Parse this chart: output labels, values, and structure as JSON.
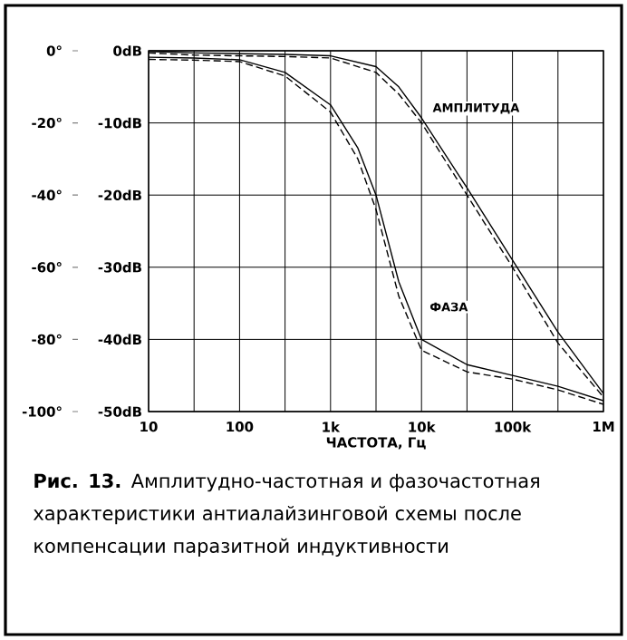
{
  "chart_data": {
    "type": "line",
    "xlabel": "ЧАСТОТА, Гц",
    "log": "x",
    "grid": true,
    "marker": "none",
    "xlim": [
      10,
      1000000
    ],
    "xticks": [
      10,
      {
        "value": 31.62,
        "label": null
      },
      100,
      {
        "value": 316.2,
        "label": null
      },
      {
        "value": 1000,
        "label": "1k"
      },
      {
        "value": 3162,
        "label": null
      },
      {
        "value": 10000,
        "label": "10k"
      },
      {
        "value": 31620,
        "label": null
      },
      {
        "value": 100000,
        "label": "100k"
      },
      {
        "value": 316200,
        "label": null
      },
      {
        "value": 1000000,
        "label": "1M"
      }
    ],
    "ylim": [
      -50,
      0
    ],
    "yticks": [
      {
        "value": 0,
        "label": "0dB"
      },
      {
        "value": -10,
        "label": "-10dB"
      },
      {
        "value": -20,
        "label": "-20dB"
      },
      {
        "value": -30,
        "label": "-30dB"
      },
      {
        "value": -40,
        "label": "-40dB"
      },
      {
        "value": -50,
        "label": "-50dB"
      }
    ],
    "y2lim": [
      -100,
      0
    ],
    "y2ticks": [
      {
        "value": 0,
        "label": "0°"
      },
      {
        "value": -20,
        "label": "-20°"
      },
      {
        "value": -40,
        "label": "-40°"
      },
      {
        "value": -60,
        "label": "-60°"
      },
      {
        "value": -80,
        "label": "-80°"
      },
      {
        "value": -100,
        "label": "-100°"
      }
    ],
    "series": [
      {
        "color": "#000000",
        "line_style": "solid",
        "x": [
          10,
          31.62,
          100,
          316.2,
          1000,
          3162,
          5623,
          10000,
          31620,
          100000,
          316200,
          1000000
        ],
        "values": [
          -0.1,
          -0.3,
          -0.4,
          -0.5,
          -0.7,
          -2.2,
          -5,
          -9.3,
          -19,
          -29,
          -39,
          -47.5
        ]
      },
      {
        "color": "#000000",
        "line_style": "dashed",
        "x": [
          10,
          31.62,
          100,
          316.2,
          1000,
          3162,
          5623,
          10000,
          31620,
          100000,
          316200,
          1000000
        ],
        "values": [
          -0.3,
          -0.6,
          -0.7,
          -0.8,
          -1,
          -3,
          -6,
          -10,
          -20,
          -30,
          -40.5,
          -48
        ]
      },
      {
        "color": "#000000",
        "line_style": "solid",
        "axis": "y2",
        "x": [
          10,
          31.62,
          100,
          316.2,
          1000,
          2000,
          3162,
          5623,
          10000,
          31620,
          100000,
          316200,
          1000000
        ],
        "values": [
          -1.8,
          -2,
          -2.5,
          -6,
          -15,
          -27,
          -40,
          -64,
          -80,
          -87,
          -90,
          -93,
          -97
        ]
      },
      {
        "color": "#000000",
        "line_style": "dashed",
        "axis": "y2",
        "x": [
          10,
          31.62,
          100,
          316.2,
          1000,
          2000,
          3162,
          5623,
          10000,
          31620,
          100000,
          316200,
          1000000
        ],
        "values": [
          -2.4,
          -2.6,
          -3,
          -7,
          -17,
          -30,
          -44,
          -68,
          -83,
          -89,
          -91,
          -94,
          -98
        ]
      }
    ],
    "annotations": [
      "АМПЛИТУДА",
      "ФАЗА",
      "**Рис. 13.** Амплитудно-частотная и фазочастотная характеристики антиалайзинговой схемы после компенсации паразитной индуктивности"
    ]
  }
}
